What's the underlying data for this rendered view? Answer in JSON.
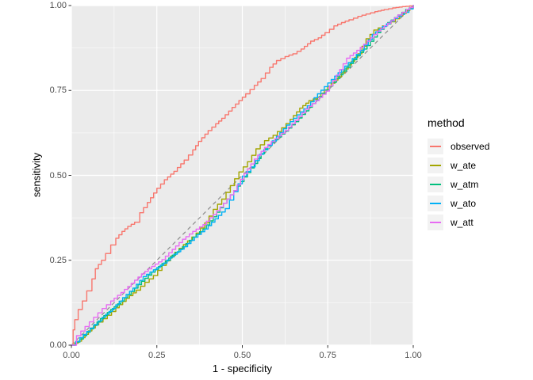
{
  "figure": {
    "background": "#FFFFFF",
    "panel_background": "#EBEBEB",
    "grid_color": "#FFFFFF",
    "tick_mark_color": "#333333",
    "tick_label_color": "#4D4D4D"
  },
  "legend": {
    "title": "method",
    "key_background": "#F2F2F2",
    "items": [
      {
        "label": "observed",
        "color": "#F8766D"
      },
      {
        "label": "w_ate",
        "color": "#A3A500"
      },
      {
        "label": "w_atm",
        "color": "#00BF7D"
      },
      {
        "label": "w_ato",
        "color": "#00B0F6"
      },
      {
        "label": "w_att",
        "color": "#E76BF3"
      }
    ]
  },
  "chart_data": {
    "type": "line",
    "title": "",
    "xlabel": "1 - specificity",
    "ylabel": "sensitivity",
    "legend_title": "method",
    "legend_position": "right",
    "grid": true,
    "xlim": [
      0,
      1
    ],
    "ylim": [
      0,
      1
    ],
    "x_ticks": {
      "values": [
        0,
        0.25,
        0.5,
        0.75,
        1
      ],
      "labels": [
        "0.00",
        "0.25",
        "0.50",
        "0.75",
        "1.00"
      ]
    },
    "y_ticks": {
      "values": [
        0,
        0.25,
        0.5,
        0.75,
        1
      ],
      "labels": [
        "0.00",
        "0.25",
        "0.50",
        "0.75",
        "1.00"
      ]
    },
    "minor_ticks": [
      0.125,
      0.375,
      0.625,
      0.875
    ],
    "reference_line": {
      "style": "dashed",
      "color": "#8C8C8C",
      "from": [
        0,
        0
      ],
      "to": [
        1,
        1
      ]
    },
    "series": [
      {
        "name": "observed",
        "color": "#F8766D",
        "points": [
          [
            0,
            0
          ],
          [
            0.005,
            0.045
          ],
          [
            0.01,
            0.075
          ],
          [
            0.02,
            0.105
          ],
          [
            0.032,
            0.13
          ],
          [
            0.045,
            0.16
          ],
          [
            0.06,
            0.195
          ],
          [
            0.07,
            0.225
          ],
          [
            0.088,
            0.25
          ],
          [
            0.1,
            0.27
          ],
          [
            0.115,
            0.295
          ],
          [
            0.13,
            0.315
          ],
          [
            0.148,
            0.335
          ],
          [
            0.165,
            0.35
          ],
          [
            0.185,
            0.362
          ],
          [
            0.2,
            0.39
          ],
          [
            0.222,
            0.42
          ],
          [
            0.25,
            0.462
          ],
          [
            0.272,
            0.487
          ],
          [
            0.3,
            0.512
          ],
          [
            0.33,
            0.545
          ],
          [
            0.355,
            0.575
          ],
          [
            0.372,
            0.6
          ],
          [
            0.4,
            0.632
          ],
          [
            0.422,
            0.652
          ],
          [
            0.44,
            0.668
          ],
          [
            0.47,
            0.7
          ],
          [
            0.49,
            0.72
          ],
          [
            0.51,
            0.74
          ],
          [
            0.535,
            0.765
          ],
          [
            0.555,
            0.785
          ],
          [
            0.58,
            0.818
          ],
          [
            0.6,
            0.838
          ],
          [
            0.625,
            0.85
          ],
          [
            0.648,
            0.858
          ],
          [
            0.672,
            0.872
          ],
          [
            0.7,
            0.895
          ],
          [
            0.722,
            0.905
          ],
          [
            0.742,
            0.92
          ],
          [
            0.768,
            0.94
          ],
          [
            0.79,
            0.95
          ],
          [
            0.812,
            0.958
          ],
          [
            0.838,
            0.968
          ],
          [
            0.862,
            0.975
          ],
          [
            0.888,
            0.982
          ],
          [
            0.915,
            0.988
          ],
          [
            0.94,
            0.993
          ],
          [
            0.968,
            0.997
          ],
          [
            1,
            1
          ]
        ]
      },
      {
        "name": "w_ate",
        "color": "#A3A500",
        "points": [
          [
            0,
            0
          ],
          [
            0.02,
            0.012
          ],
          [
            0.05,
            0.042
          ],
          [
            0.08,
            0.068
          ],
          [
            0.105,
            0.088
          ],
          [
            0.13,
            0.11
          ],
          [
            0.16,
            0.138
          ],
          [
            0.19,
            0.162
          ],
          [
            0.215,
            0.185
          ],
          [
            0.24,
            0.205
          ],
          [
            0.265,
            0.235
          ],
          [
            0.29,
            0.262
          ],
          [
            0.315,
            0.285
          ],
          [
            0.34,
            0.307
          ],
          [
            0.365,
            0.33
          ],
          [
            0.39,
            0.36
          ],
          [
            0.415,
            0.4
          ],
          [
            0.44,
            0.43
          ],
          [
            0.465,
            0.47
          ],
          [
            0.49,
            0.51
          ],
          [
            0.515,
            0.54
          ],
          [
            0.54,
            0.578
          ],
          [
            0.565,
            0.602
          ],
          [
            0.59,
            0.618
          ],
          [
            0.615,
            0.64
          ],
          [
            0.64,
            0.665
          ],
          [
            0.668,
            0.698
          ],
          [
            0.695,
            0.72
          ],
          [
            0.72,
            0.73
          ],
          [
            0.75,
            0.762
          ],
          [
            0.78,
            0.79
          ],
          [
            0.81,
            0.825
          ],
          [
            0.838,
            0.858
          ],
          [
            0.862,
            0.902
          ],
          [
            0.885,
            0.928
          ],
          [
            0.91,
            0.94
          ],
          [
            0.935,
            0.952
          ],
          [
            0.96,
            0.97
          ],
          [
            0.98,
            0.985
          ],
          [
            1,
            1
          ]
        ]
      },
      {
        "name": "w_atm",
        "color": "#00BF7D",
        "points": [
          [
            0,
            0
          ],
          [
            0.025,
            0.018
          ],
          [
            0.055,
            0.048
          ],
          [
            0.085,
            0.078
          ],
          [
            0.115,
            0.105
          ],
          [
            0.145,
            0.13
          ],
          [
            0.175,
            0.158
          ],
          [
            0.205,
            0.188
          ],
          [
            0.235,
            0.215
          ],
          [
            0.265,
            0.24
          ],
          [
            0.295,
            0.265
          ],
          [
            0.325,
            0.29
          ],
          [
            0.355,
            0.318
          ],
          [
            0.385,
            0.342
          ],
          [
            0.415,
            0.378
          ],
          [
            0.445,
            0.418
          ],
          [
            0.475,
            0.455
          ],
          [
            0.505,
            0.495
          ],
          [
            0.535,
            0.535
          ],
          [
            0.565,
            0.578
          ],
          [
            0.595,
            0.605
          ],
          [
            0.625,
            0.63
          ],
          [
            0.655,
            0.658
          ],
          [
            0.685,
            0.69
          ],
          [
            0.715,
            0.722
          ],
          [
            0.745,
            0.752
          ],
          [
            0.775,
            0.785
          ],
          [
            0.805,
            0.818
          ],
          [
            0.835,
            0.852
          ],
          [
            0.865,
            0.882
          ],
          [
            0.895,
            0.92
          ],
          [
            0.925,
            0.95
          ],
          [
            0.955,
            0.972
          ],
          [
            0.978,
            0.988
          ],
          [
            1,
            1
          ]
        ]
      },
      {
        "name": "w_ato",
        "color": "#00B0F6",
        "points": [
          [
            0,
            0
          ],
          [
            0.025,
            0.022
          ],
          [
            0.055,
            0.05
          ],
          [
            0.09,
            0.082
          ],
          [
            0.12,
            0.108
          ],
          [
            0.15,
            0.14
          ],
          [
            0.18,
            0.168
          ],
          [
            0.21,
            0.202
          ],
          [
            0.24,
            0.222
          ],
          [
            0.27,
            0.242
          ],
          [
            0.3,
            0.268
          ],
          [
            0.33,
            0.29
          ],
          [
            0.36,
            0.318
          ],
          [
            0.39,
            0.342
          ],
          [
            0.42,
            0.372
          ],
          [
            0.45,
            0.402
          ],
          [
            0.475,
            0.452
          ],
          [
            0.5,
            0.498
          ],
          [
            0.525,
            0.525
          ],
          [
            0.55,
            0.562
          ],
          [
            0.575,
            0.588
          ],
          [
            0.6,
            0.615
          ],
          [
            0.63,
            0.648
          ],
          [
            0.66,
            0.678
          ],
          [
            0.69,
            0.705
          ],
          [
            0.72,
            0.74
          ],
          [
            0.75,
            0.772
          ],
          [
            0.78,
            0.802
          ],
          [
            0.81,
            0.832
          ],
          [
            0.845,
            0.868
          ],
          [
            0.88,
            0.915
          ],
          [
            0.91,
            0.938
          ],
          [
            0.945,
            0.962
          ],
          [
            0.975,
            0.98
          ],
          [
            1,
            1
          ]
        ]
      },
      {
        "name": "w_att",
        "color": "#E76BF3",
        "points": [
          [
            0,
            0
          ],
          [
            0.015,
            0.028
          ],
          [
            0.04,
            0.055
          ],
          [
            0.065,
            0.082
          ],
          [
            0.09,
            0.108
          ],
          [
            0.115,
            0.13
          ],
          [
            0.145,
            0.155
          ],
          [
            0.175,
            0.182
          ],
          [
            0.205,
            0.21
          ],
          [
            0.235,
            0.232
          ],
          [
            0.265,
            0.252
          ],
          [
            0.295,
            0.282
          ],
          [
            0.325,
            0.312
          ],
          [
            0.355,
            0.335
          ],
          [
            0.385,
            0.355
          ],
          [
            0.415,
            0.385
          ],
          [
            0.445,
            0.418
          ],
          [
            0.475,
            0.455
          ],
          [
            0.505,
            0.505
          ],
          [
            0.535,
            0.548
          ],
          [
            0.565,
            0.582
          ],
          [
            0.595,
            0.608
          ],
          [
            0.625,
            0.632
          ],
          [
            0.655,
            0.662
          ],
          [
            0.685,
            0.695
          ],
          [
            0.715,
            0.72
          ],
          [
            0.745,
            0.748
          ],
          [
            0.775,
            0.795
          ],
          [
            0.805,
            0.845
          ],
          [
            0.835,
            0.868
          ],
          [
            0.865,
            0.895
          ],
          [
            0.895,
            0.925
          ],
          [
            0.925,
            0.948
          ],
          [
            0.955,
            0.972
          ],
          [
            0.98,
            0.988
          ],
          [
            1,
            1
          ]
        ]
      }
    ]
  }
}
